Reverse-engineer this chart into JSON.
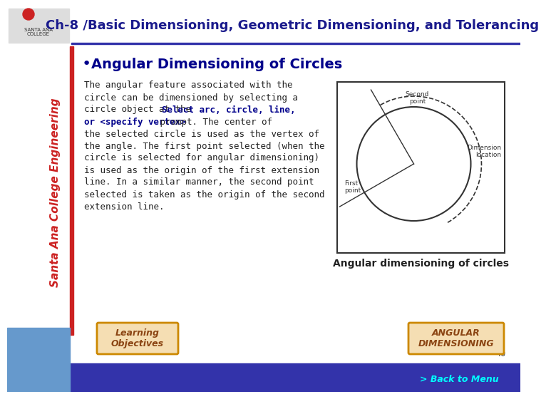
{
  "title": "Ch-8 /Basic Dimensioning, Geometric Dimensioning, and Tolerancing",
  "title_color": "#1a1a8c",
  "title_fontsize": 13,
  "bg_color": "#ffffff",
  "header_bg": "#ffffff",
  "sidebar_color": "#8B8B8B",
  "bullet_title": "Angular Dimensioning of Circles",
  "bullet_title_color": "#00008B",
  "bullet_title_fontsize": 14,
  "body_text_normal": "The angular feature associated with the circle can be dimensioned by selecting a circle object at the ",
  "body_bold1": "Select arc, circle, line, or <specify vertex>",
  "body_text2": " prompt. The center of the selected circle is used as the vertex of the angle. The first point selected (when the circle is selected for angular dimensioning) is used as the origin of the first extension line. In a similar manner, the second point selected is taken as the origin of the second extension line.",
  "body_fontsize": 9,
  "body_color": "#222222",
  "bold_color": "#00008B",
  "caption": "Angular dimensioning of circles",
  "caption_fontsize": 10,
  "caption_color": "#222222",
  "btn_left_text": "Learning\nObjectives",
  "btn_right_text": "ANGULAR\nDIMENSIONING",
  "btn_color": "#F5DEB3",
  "btn_border": "#cc8800",
  "footer_bg": "#3333aa",
  "footer_text": "> Back to Menu",
  "footer_text_color": "#00ffff",
  "page_number": "40",
  "sidebar_text_color": "#cc2222",
  "left_bar_color": "#cc2222"
}
